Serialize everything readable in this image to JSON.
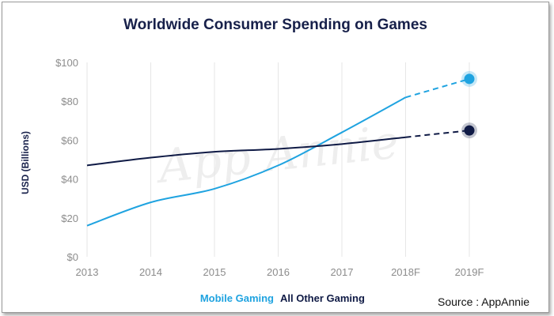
{
  "chart_data": {
    "type": "line",
    "title": "Worldwide Consumer Spending on Games",
    "ylabel": "USD (Billions)",
    "xlabel": "",
    "categories": [
      "2013",
      "2014",
      "2015",
      "2016",
      "2017",
      "2018F",
      "2019F"
    ],
    "forecast_from_index": 5,
    "ylim": [
      0,
      100
    ],
    "yticks": [
      0,
      20,
      40,
      60,
      80,
      100
    ],
    "ytick_labels": [
      "$0",
      "$20",
      "$40",
      "$60",
      "$80",
      "$100"
    ],
    "grid": "vertical",
    "legend_position": "bottom-center",
    "series": [
      {
        "name": "Mobile Gaming",
        "color": "#1fa3e0",
        "values": [
          16,
          28,
          35,
          47,
          64,
          82,
          91.5
        ]
      },
      {
        "name": "All Other Gaming",
        "color": "#0f1a45",
        "values": [
          47,
          51,
          54,
          55.5,
          58,
          61.5,
          65
        ]
      }
    ],
    "watermark": "App Annie"
  },
  "source_text": "Source : AppAnnie"
}
